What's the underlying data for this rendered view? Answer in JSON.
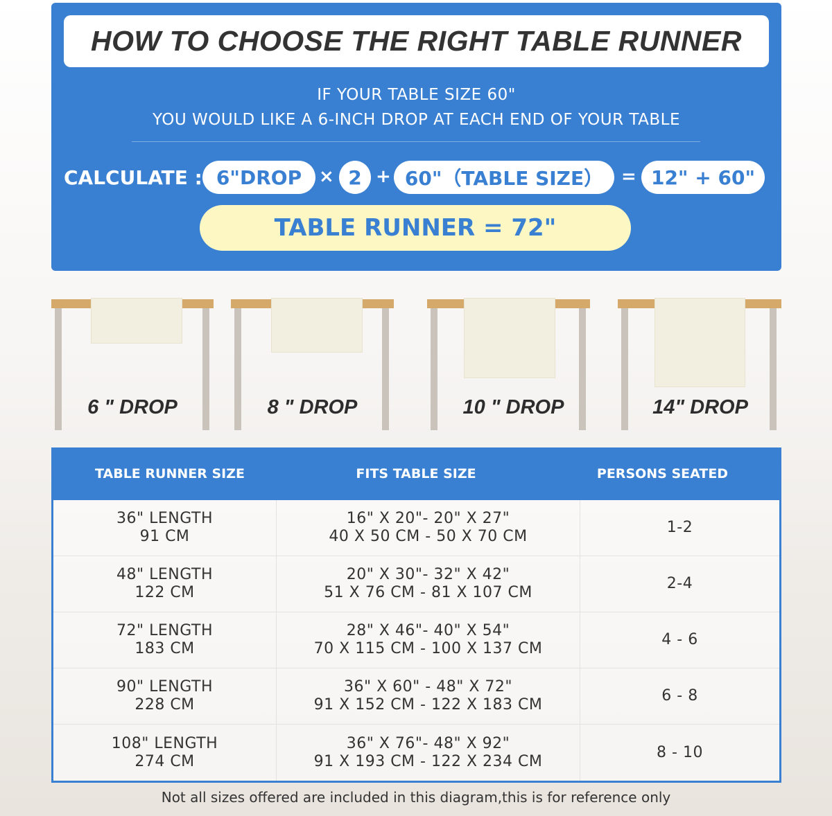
{
  "title": "HOW TO CHOOSE THE RIGHT TABLE RUNNER",
  "intro": [
    "IF YOUR TABLE SIZE 60\"",
    "YOU WOULD LIKE A 6-INCH DROP AT EACH END OF YOUR TABLE"
  ],
  "calculation": {
    "label": "CALCULATE :",
    "drop": "6\"DROP",
    "times": "×",
    "multiplier": "2",
    "plus": "+",
    "table_size": "60\"（TABLE SIZE）",
    "equals": "=",
    "sum": "12\" + 60\"",
    "result": "TABLE RUNNER = 72\""
  },
  "drops": [
    {
      "label": "6 \" DROP",
      "inches": 6
    },
    {
      "label": "8 \" DROP",
      "inches": 8
    },
    {
      "label": "10 \" DROP",
      "inches": 10
    },
    {
      "label": "14\" DROP",
      "inches": 14
    }
  ],
  "size_table": {
    "headers": [
      "TABLE RUNNER SIZE",
      "FITS TABLE SIZE",
      "PERSONS SEATED"
    ],
    "rows": [
      {
        "size": [
          "36\" LENGTH",
          "91 CM"
        ],
        "fits": [
          "16\" X 20\"- 20\" X 27\"",
          "40 X 50 CM - 50 X 70 CM"
        ],
        "persons": "1-2"
      },
      {
        "size": [
          "48\" LENGTH",
          "122 CM"
        ],
        "fits": [
          "20\" X 30\"- 32\" X 42\"",
          "51 X 76 CM - 81 X 107 CM"
        ],
        "persons": "2-4"
      },
      {
        "size": [
          "72\" LENGTH",
          "183 CM"
        ],
        "fits": [
          "28\" X 46\"- 40\" X 54\"",
          "70 X 115 CM - 100 X 137 CM"
        ],
        "persons": "4 - 6"
      },
      {
        "size": [
          "90\" LENGTH",
          "228 CM"
        ],
        "fits": [
          "36\" X 60\" - 48\" X 72\"",
          "91 X 152 CM - 122 X 183 CM"
        ],
        "persons": "6 - 8"
      },
      {
        "size": [
          "108\" LENGTH",
          "274 CM"
        ],
        "fits": [
          "36\" X 76\"- 48\" X 92\"",
          "91 X 193 CM - 122 X 234 CM"
        ],
        "persons": "8 - 10"
      }
    ]
  },
  "note": "Not all sizes offered are included in this diagram,this is for reference only",
  "colors": {
    "primary": "#3a80d2",
    "result_bg": "#fdf7c3",
    "table_top": "#d4a96a",
    "table_leg": "#c9c3bc"
  }
}
